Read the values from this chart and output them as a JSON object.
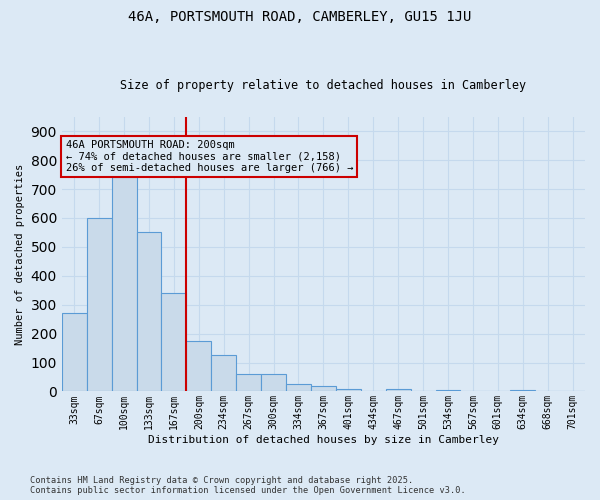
{
  "title": "46A, PORTSMOUTH ROAD, CAMBERLEY, GU15 1JU",
  "subtitle": "Size of property relative to detached houses in Camberley",
  "xlabel": "Distribution of detached houses by size in Camberley",
  "ylabel": "Number of detached properties",
  "footer_line1": "Contains HM Land Registry data © Crown copyright and database right 2025.",
  "footer_line2": "Contains public sector information licensed under the Open Government Licence v3.0.",
  "annotation_line1": "46A PORTSMOUTH ROAD: 200sqm",
  "annotation_line2": "← 74% of detached houses are smaller (2,158)",
  "annotation_line3": "26% of semi-detached houses are larger (766) →",
  "bar_color": "#c9daea",
  "bar_edge_color": "#5b9bd5",
  "grid_color": "#c5d9ed",
  "bg_color": "#dce9f5",
  "vline_color": "#cc0000",
  "vline_index": 4,
  "categories": [
    "33sqm",
    "67sqm",
    "100sqm",
    "133sqm",
    "167sqm",
    "200sqm",
    "234sqm",
    "267sqm",
    "300sqm",
    "334sqm",
    "367sqm",
    "401sqm",
    "434sqm",
    "467sqm",
    "501sqm",
    "534sqm",
    "567sqm",
    "601sqm",
    "634sqm",
    "668sqm",
    "701sqm"
  ],
  "values": [
    270,
    600,
    740,
    550,
    340,
    175,
    125,
    60,
    60,
    25,
    20,
    10,
    0,
    10,
    0,
    5,
    0,
    0,
    5,
    0,
    0
  ],
  "ylim": [
    0,
    950
  ],
  "yticks": [
    0,
    100,
    200,
    300,
    400,
    500,
    600,
    700,
    800,
    900
  ]
}
